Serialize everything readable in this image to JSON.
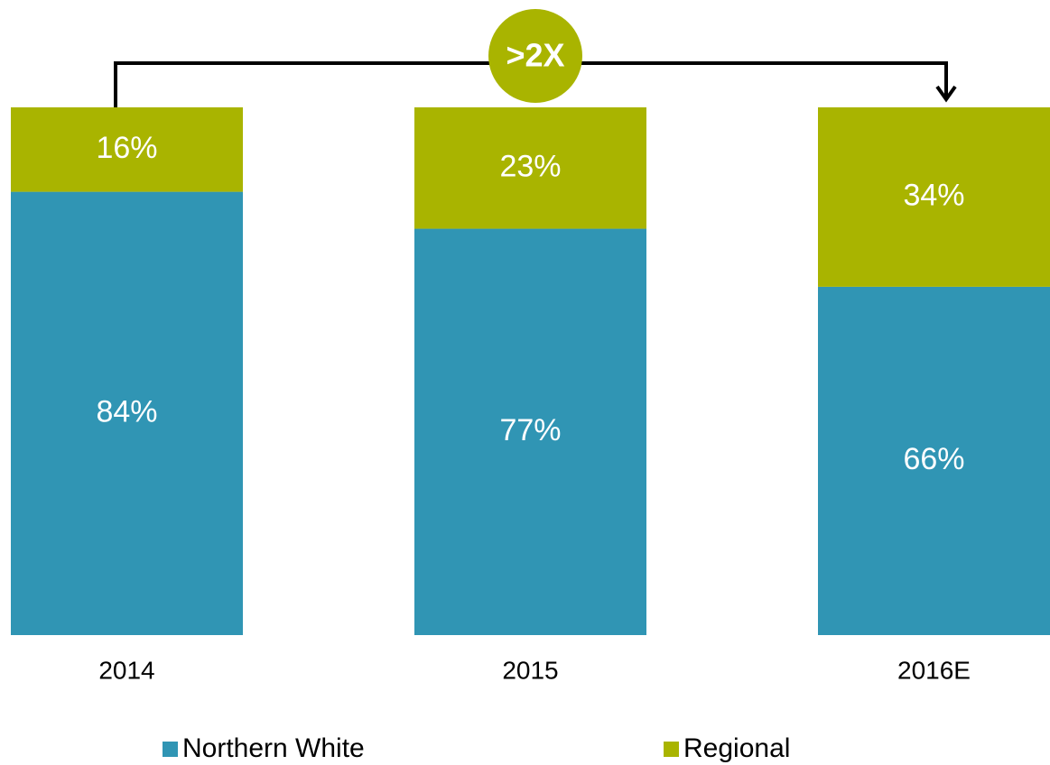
{
  "chart_data": {
    "type": "stacked_bar",
    "annotation": ">2X",
    "categories": [
      "2014",
      "2015",
      "2016E"
    ],
    "series": [
      {
        "name": "Northern White",
        "color": "#3095b4",
        "values": [
          84,
          77,
          66
        ],
        "value_labels": [
          "84%",
          "77%",
          "66%"
        ]
      },
      {
        "name": "Regional",
        "color": "#a9b400",
        "values": [
          16,
          23,
          34
        ],
        "value_labels": [
          "16%",
          "23%",
          "34%"
        ]
      }
    ],
    "ylim": [
      0,
      100
    ]
  }
}
